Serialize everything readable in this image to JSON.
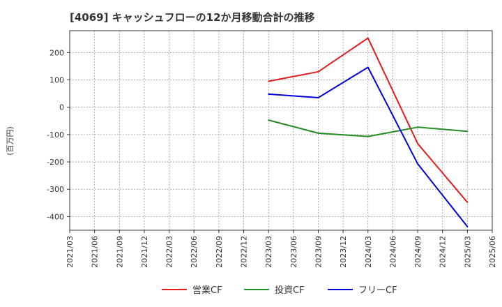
{
  "chart_data": {
    "type": "line",
    "title": "[4069]  キャッシュフローの12か月移動合計の推移",
    "ylabel": "(百万円)",
    "xlabel": "",
    "ylim": [
      -450,
      280
    ],
    "yticks": [
      200,
      100,
      0,
      -100,
      -200,
      -300,
      -400
    ],
    "ytick_labels": [
      "200",
      "100",
      "0",
      "-100",
      "-200",
      "-300",
      "-400"
    ],
    "categories": [
      "2021/03",
      "2021/06",
      "2021/09",
      "2021/12",
      "2022/03",
      "2022/06",
      "2022/09",
      "2022/12",
      "2023/03",
      "2023/06",
      "2023/09",
      "2023/12",
      "2024/03",
      "2024/06",
      "2024/09",
      "2024/12",
      "2025/03",
      "2025/06"
    ],
    "grid": true,
    "series": [
      {
        "name": "営業CF",
        "color": "#e41a1c",
        "points": [
          {
            "x": "2023/03",
            "y": 95
          },
          {
            "x": "2023/09",
            "y": 130
          },
          {
            "x": "2024/03",
            "y": 253
          },
          {
            "x": "2024/09",
            "y": -133
          },
          {
            "x": "2025/03",
            "y": -348
          }
        ]
      },
      {
        "name": "投資CF",
        "color": "#228b22",
        "points": [
          {
            "x": "2023/03",
            "y": -47
          },
          {
            "x": "2023/09",
            "y": -95
          },
          {
            "x": "2024/03",
            "y": -107
          },
          {
            "x": "2024/09",
            "y": -73
          },
          {
            "x": "2025/03",
            "y": -88
          }
        ]
      },
      {
        "name": "フリーCF",
        "color": "#0000dd",
        "points": [
          {
            "x": "2023/03",
            "y": 48
          },
          {
            "x": "2023/09",
            "y": 35
          },
          {
            "x": "2024/03",
            "y": 146
          },
          {
            "x": "2024/09",
            "y": -207
          },
          {
            "x": "2025/03",
            "y": -437
          }
        ]
      }
    ],
    "legend_position": "bottom-center"
  }
}
